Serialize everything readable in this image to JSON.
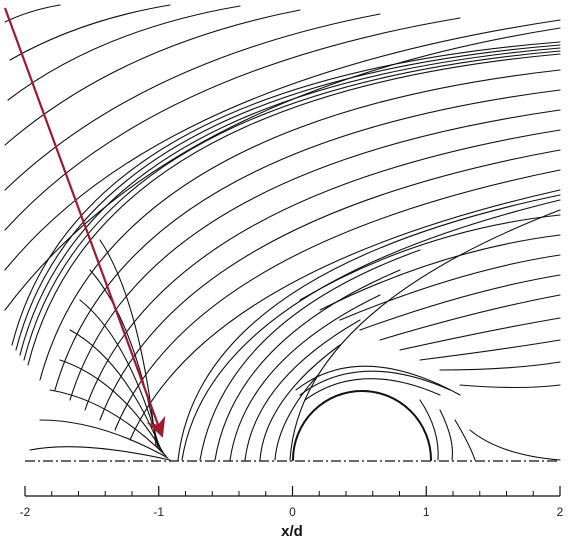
{
  "chart_data": {
    "type": "streamline",
    "xlabel": "x/d",
    "ylabel": "",
    "xlim": [
      -2,
      2
    ],
    "major_ticks": [
      {
        "value": -2,
        "label": "-2"
      },
      {
        "value": -1,
        "label": "-1"
      },
      {
        "value": 0,
        "label": "0"
      },
      {
        "value": 1,
        "label": "1"
      },
      {
        "value": 2,
        "label": "2"
      }
    ],
    "minor_tick_step": 0.2,
    "cylinder": {
      "center_x": 0.5,
      "diameter": 1.0
    },
    "symmetry_line": "dash-dot",
    "annotation": {
      "kind": "arrow",
      "color": "#a0192e",
      "points_to_x": -0.95
    },
    "colors": {
      "lines": "#111111",
      "arrow": "#a0192e"
    }
  }
}
